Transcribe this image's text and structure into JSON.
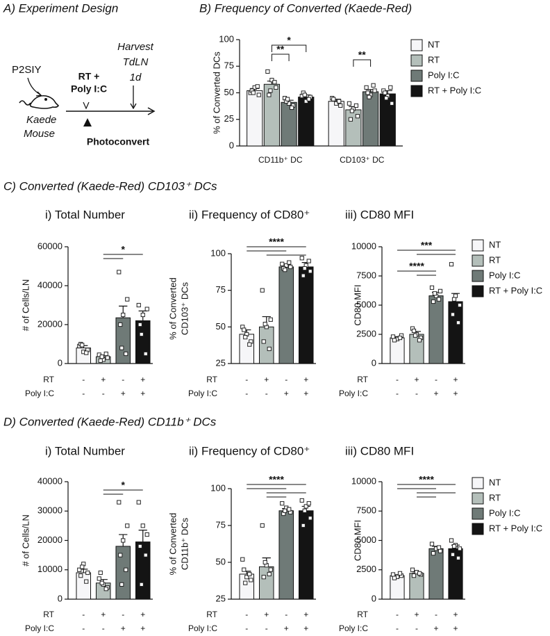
{
  "panel_a": {
    "title": "A) Experiment Design",
    "injection": "P2SIY",
    "mouse": [
      "Kaede",
      "Mouse"
    ],
    "treatment": [
      "RT +",
      "Poly I:C"
    ],
    "harvest": [
      "Harvest",
      "TdLN",
      "1d"
    ],
    "photoconvert": "Photoconvert"
  },
  "section_c": "C) Converted (Kaede-Red) CD103⁺ DCs",
  "section_d": "D) Converted (Kaede-Red) CD11b⁺ DCs",
  "chart_data": [
    {
      "type": "grouped_bar",
      "title": "B) Frequency of Converted (Kaede-Red)",
      "ylabel": "% of Converted DCs",
      "categories": [
        "CD11b⁺ DC",
        "CD103⁺ DC"
      ],
      "series": [
        {
          "name": "NT",
          "color": "#f6f6f8",
          "values": [
            52,
            42
          ],
          "errors": [
            2,
            2
          ],
          "points": [
            [
              50,
              55,
              48,
              52,
              56,
              50
            ],
            [
              45,
              40,
              38,
              44,
              42
            ]
          ]
        },
        {
          "name": "RT",
          "color": "#b4bfba",
          "values": [
            58,
            34
          ],
          "errors": [
            3,
            3
          ],
          "points": [
            [
              70,
              62,
              55,
              48,
              60,
              52
            ],
            [
              40,
              35,
              28,
              25,
              38,
              33
            ]
          ]
        },
        {
          "name": "Poly I:C",
          "color": "#6f7a77",
          "values": [
            41,
            51
          ],
          "errors": [
            2,
            2
          ],
          "points": [
            [
              45,
              40,
              38,
              42,
              36,
              44
            ],
            [
              55,
              48,
              52,
              50,
              57,
              46
            ]
          ]
        },
        {
          "name": "RT + Poly I:C",
          "color": "#141414",
          "values": [
            46,
            49
          ],
          "errors": [
            2,
            3
          ],
          "points": [
            [
              47,
              42,
              46,
              50,
              44,
              48
            ],
            [
              52,
              47,
              40,
              50,
              55,
              45
            ]
          ]
        }
      ],
      "ylim": [
        0,
        100
      ],
      "yticks": [
        0,
        25,
        50,
        75,
        100
      ],
      "legend": "right",
      "brackets": true,
      "significance": [
        {
          "label": "*",
          "pairs": [
            [
              1,
              3
            ]
          ]
        },
        {
          "label": "**",
          "pairs": [
            [
              1,
              2
            ]
          ]
        },
        {
          "label": "**",
          "pairs": [
            [
              5,
              6
            ]
          ]
        }
      ]
    },
    {
      "type": "bar",
      "title": "i) Total Number",
      "ylabel": [
        "# of Cells/LN"
      ],
      "values": [
        8000,
        3500,
        23500,
        22000
      ],
      "errors": [
        1200,
        800,
        6000,
        5000
      ],
      "colors": [
        "#f6f6f8",
        "#b4bfba",
        "#6f7a77",
        "#141414"
      ],
      "points": [
        [
          9000,
          6000,
          7000,
          10000,
          5500,
          9500
        ],
        [
          4500,
          2000,
          3000,
          1500,
          5000,
          3500
        ],
        [
          47000,
          25000,
          33000,
          20000,
          5000,
          8000
        ],
        [
          30000,
          25000,
          28000,
          20000,
          5000,
          15000
        ]
      ],
      "ylim": [
        0,
        60000
      ],
      "yticks": [
        0,
        20000,
        40000,
        60000
      ],
      "treatment_rows": [
        {
          "label": "RT",
          "marks": [
            "-",
            "+",
            "-",
            "+"
          ]
        },
        {
          "label": "Poly I:C",
          "marks": [
            "-",
            "-",
            "+",
            "+"
          ]
        }
      ],
      "significance": [
        {
          "label": "*",
          "pairs": [
            [
              1,
              3
            ],
            [
              1,
              2
            ]
          ]
        }
      ]
    },
    {
      "type": "bar",
      "title": "ii) Frequency of CD80⁺",
      "ylabel": [
        "% of Converted",
        "CD103⁺ DCs"
      ],
      "values": [
        45,
        50,
        91,
        91
      ],
      "errors": [
        3,
        7,
        1.5,
        3
      ],
      "colors": [
        "#f6f6f8",
        "#b4bfba",
        "#6f7a77",
        "#141414"
      ],
      "points": [
        [
          50,
          45,
          40,
          48,
          38,
          43
        ],
        [
          75,
          50,
          55,
          40,
          35,
          52
        ],
        [
          93,
          92,
          91,
          90,
          94,
          89
        ],
        [
          97,
          92,
          88,
          85,
          95,
          90
        ]
      ],
      "ylim": [
        25,
        100
      ],
      "yticks": [
        25,
        50,
        75,
        100
      ],
      "treatment_rows": [
        {
          "label": "RT",
          "marks": [
            "-",
            "+",
            "-",
            "+"
          ]
        },
        {
          "label": "Poly I:C",
          "marks": [
            "-",
            "-",
            "+",
            "+"
          ]
        }
      ],
      "significance": [
        {
          "label": "****",
          "pairs": [
            [
              0,
              3
            ],
            [
              0,
              2
            ],
            [
              1,
              3
            ]
          ]
        }
      ]
    },
    {
      "type": "bar",
      "title": "iii) CD80 MFI",
      "ylabel": [
        "CD80 MFI"
      ],
      "values": [
        2200,
        2500,
        5800,
        5300
      ],
      "errors": [
        100,
        250,
        300,
        700
      ],
      "colors": [
        "#f6f6f8",
        "#b4bfba",
        "#6f7a77",
        "#141414"
      ],
      "points": [
        [
          2300,
          2100,
          2400,
          2000,
          2200
        ],
        [
          3000,
          2500,
          2200,
          2800,
          2000,
          2400
        ],
        [
          6500,
          5800,
          6200,
          5300,
          5500,
          6000
        ],
        [
          8500,
          5800,
          5000,
          4200,
          3500,
          5500
        ]
      ],
      "ylim": [
        0,
        10000
      ],
      "yticks": [
        0,
        2500,
        5000,
        7500,
        10000
      ],
      "treatment_rows": [
        {
          "label": "RT",
          "marks": [
            "-",
            "+",
            "-",
            "+"
          ]
        },
        {
          "label": "Poly I:C",
          "marks": [
            "-",
            "-",
            "+",
            "+"
          ]
        }
      ],
      "legend": "right",
      "legend_labels": [
        "NT",
        "RT",
        "Poly I:C",
        "RT + Poly I:C"
      ],
      "significance": [
        {
          "label": "***",
          "pairs": [
            [
              0,
              3
            ],
            [
              1,
              3
            ]
          ]
        },
        {
          "label": "****",
          "pairs": [
            [
              0,
              2
            ],
            [
              1,
              2
            ]
          ]
        }
      ]
    },
    {
      "type": "bar",
      "title": "i) Total Number",
      "ylabel": [
        "# of Cells/LN"
      ],
      "values": [
        9000,
        5500,
        18000,
        19500
      ],
      "errors": [
        1200,
        1200,
        4000,
        4000
      ],
      "colors": [
        "#f6f6f8",
        "#b4bfba",
        "#6f7a77",
        "#141414"
      ],
      "points": [
        [
          10000,
          12000,
          9000,
          8000,
          6000,
          11000
        ],
        [
          7000,
          5000,
          4000,
          9000,
          3500,
          5500
        ],
        [
          33000,
          20000,
          25000,
          15000,
          10000,
          5000
        ],
        [
          33000,
          25000,
          22000,
          18000,
          15000,
          5000
        ]
      ],
      "ylim": [
        0,
        40000
      ],
      "yticks": [
        0,
        10000,
        20000,
        30000,
        40000
      ],
      "treatment_rows": [
        {
          "label": "RT",
          "marks": [
            "-",
            "+",
            "-",
            "+"
          ]
        },
        {
          "label": "Poly I:C",
          "marks": [
            "-",
            "-",
            "+",
            "+"
          ]
        }
      ],
      "significance": [
        {
          "label": "*",
          "pairs": [
            [
              1,
              3
            ],
            [
              1,
              2
            ]
          ]
        }
      ]
    },
    {
      "type": "bar",
      "title": "ii) Frequency of CD80⁺",
      "ylabel": [
        "% of Converted",
        "CD11b⁺ DCs"
      ],
      "values": [
        42,
        47,
        85,
        85
      ],
      "errors": [
        2,
        6,
        1.5,
        3
      ],
      "colors": [
        "#f6f6f8",
        "#b4bfba",
        "#6f7a77",
        "#141414"
      ],
      "points": [
        [
          52,
          40,
          38,
          45,
          42,
          36
        ],
        [
          75,
          48,
          45,
          40,
          42,
          50
        ],
        [
          90,
          87,
          84,
          83,
          86,
          85
        ],
        [
          92,
          88,
          80,
          75,
          90,
          85
        ]
      ],
      "ylim": [
        25,
        100
      ],
      "yticks": [
        25,
        50,
        75,
        100
      ],
      "treatment_rows": [
        {
          "label": "RT",
          "marks": [
            "-",
            "+",
            "-",
            "+"
          ]
        },
        {
          "label": "Poly I:C",
          "marks": [
            "-",
            "-",
            "+",
            "+"
          ]
        }
      ],
      "significance": [
        {
          "label": "****",
          "pairs": [
            [
              0,
              3
            ],
            [
              0,
              2
            ],
            [
              1,
              3
            ],
            [
              1,
              2
            ]
          ]
        }
      ]
    },
    {
      "type": "bar",
      "title": "iii) CD80 MFI",
      "ylabel": [
        "CD80 MFI"
      ],
      "values": [
        2000,
        2200,
        4300,
        4300
      ],
      "errors": [
        80,
        120,
        200,
        300
      ],
      "colors": [
        "#f6f6f8",
        "#b4bfba",
        "#6f7a77",
        "#141414"
      ],
      "points": [
        [
          2100,
          1900,
          2000,
          1800,
          2200
        ],
        [
          2500,
          2300,
          2100,
          2000,
          2200
        ],
        [
          4700,
          4300,
          4100,
          3900,
          4400
        ],
        [
          5000,
          4600,
          4300,
          3800,
          3500,
          4500
        ]
      ],
      "ylim": [
        0,
        10000
      ],
      "yticks": [
        0,
        2500,
        5000,
        7500,
        10000
      ],
      "treatment_rows": [
        {
          "label": "RT",
          "marks": [
            "-",
            "+",
            "-",
            "+"
          ]
        },
        {
          "label": "Poly I:C",
          "marks": [
            "-",
            "-",
            "+",
            "+"
          ]
        }
      ],
      "legend": "right",
      "legend_labels": [
        "NT",
        "RT",
        "Poly I:C",
        "RT + Poly I:C"
      ],
      "significance": [
        {
          "label": "****",
          "pairs": [
            [
              0,
              3
            ],
            [
              0,
              2
            ],
            [
              1,
              3
            ],
            [
              1,
              2
            ]
          ]
        }
      ]
    }
  ]
}
